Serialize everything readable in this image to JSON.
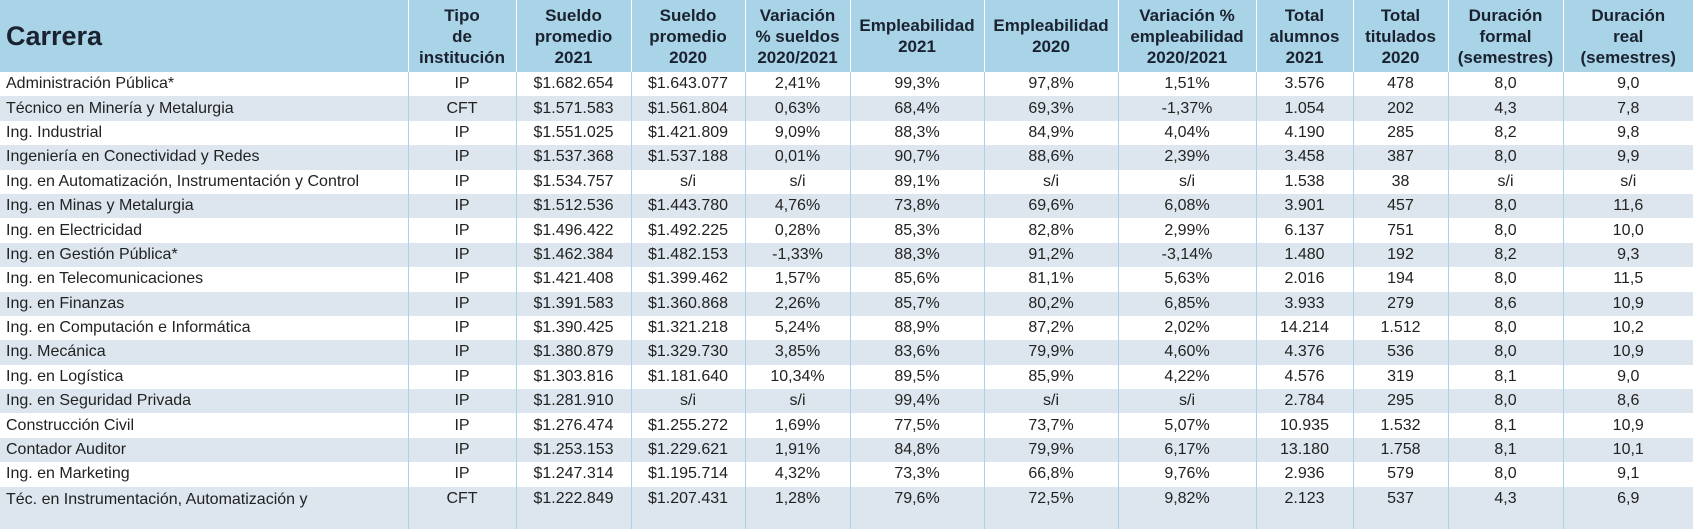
{
  "table": {
    "headers": [
      "Carrera",
      "Tipo\nde\ninstitución",
      "Sueldo\npromedio\n2021",
      "Sueldo\npromedio\n2020",
      "Variación\n% sueldos\n2020/2021",
      "Empleabilidad\n2021",
      "Empleabilidad\n2020",
      "Variación %\nempleabilidad\n2020/2021",
      "Total\nalumnos\n2021",
      "Total\ntitulados\n2020",
      "Duración\nformal\n(semestres)",
      "Duración\nreal\n(semestres)"
    ],
    "rows": [
      [
        "Administración Pública*",
        "IP",
        "$1.682.654",
        "$1.643.077",
        "2,41%",
        "99,3%",
        "97,8%",
        "1,51%",
        "3.576",
        "478",
        "8,0",
        "9,0"
      ],
      [
        "Técnico en Minería y Metalurgia",
        "CFT",
        "$1.571.583",
        "$1.561.804",
        "0,63%",
        "68,4%",
        "69,3%",
        "-1,37%",
        "1.054",
        "202",
        "4,3",
        "7,8"
      ],
      [
        "Ing. Industrial",
        "IP",
        "$1.551.025",
        "$1.421.809",
        "9,09%",
        "88,3%",
        "84,9%",
        "4,04%",
        "4.190",
        "285",
        "8,2",
        "9,8"
      ],
      [
        "Ingeniería en Conectividad y Redes",
        "IP",
        "$1.537.368",
        "$1.537.188",
        "0,01%",
        "90,7%",
        "88,6%",
        "2,39%",
        "3.458",
        "387",
        "8,0",
        "9,9"
      ],
      [
        "Ing. en Automatización, Instrumentación y Control",
        "IP",
        "$1.534.757",
        "s/i",
        "s/i",
        "89,1%",
        "s/i",
        "s/i",
        "1.538",
        "38",
        "s/i",
        "s/i"
      ],
      [
        "Ing. en Minas y Metalurgia",
        "IP",
        "$1.512.536",
        "$1.443.780",
        "4,76%",
        "73,8%",
        "69,6%",
        "6,08%",
        "3.901",
        "457",
        "8,0",
        "11,6"
      ],
      [
        "Ing. en Electricidad",
        "IP",
        "$1.496.422",
        "$1.492.225",
        "0,28%",
        "85,3%",
        "82,8%",
        "2,99%",
        "6.137",
        "751",
        "8,0",
        "10,0"
      ],
      [
        "Ing. en Gestión Pública*",
        "IP",
        "$1.462.384",
        "$1.482.153",
        "-1,33%",
        "88,3%",
        "91,2%",
        "-3,14%",
        "1.480",
        "192",
        "8,2",
        "9,3"
      ],
      [
        "Ing. en Telecomunicaciones",
        "IP",
        "$1.421.408",
        "$1.399.462",
        "1,57%",
        "85,6%",
        "81,1%",
        "5,63%",
        "2.016",
        "194",
        "8,0",
        "11,5"
      ],
      [
        "Ing. en Finanzas",
        "IP",
        "$1.391.583",
        "$1.360.868",
        "2,26%",
        "85,7%",
        "80,2%",
        "6,85%",
        "3.933",
        "279",
        "8,6",
        "10,9"
      ],
      [
        "Ing. en Computación e Informática",
        "IP",
        "$1.390.425",
        "$1.321.218",
        "5,24%",
        "88,9%",
        "87,2%",
        "2,02%",
        "14.214",
        "1.512",
        "8,0",
        "10,2"
      ],
      [
        "Ing. Mecánica",
        "IP",
        "$1.380.879",
        "$1.329.730",
        "3,85%",
        "83,6%",
        "79,9%",
        "4,60%",
        "4.376",
        "536",
        "8,0",
        "10,9"
      ],
      [
        "Ing. en Logística",
        "IP",
        "$1.303.816",
        "$1.181.640",
        "10,34%",
        "89,5%",
        "85,9%",
        "4,22%",
        "4.576",
        "319",
        "8,1",
        "9,0"
      ],
      [
        "Ing. en Seguridad Privada",
        "IP",
        "$1.281.910",
        "s/i",
        "s/i",
        "99,4%",
        "s/i",
        "s/i",
        "2.784",
        "295",
        "8,0",
        "8,6"
      ],
      [
        "Construcción Civil",
        "IP",
        "$1.276.474",
        "$1.255.272",
        "1,69%",
        "77,5%",
        "73,7%",
        "5,07%",
        "10.935",
        "1.532",
        "8,1",
        "10,9"
      ],
      [
        "Contador Auditor",
        "IP",
        "$1.253.153",
        "$1.229.621",
        "1,91%",
        "84,8%",
        "79,9%",
        "6,17%",
        "13.180",
        "1.758",
        "8,1",
        "10,1"
      ],
      [
        "Ing. en Marketing",
        "IP",
        "$1.247.314",
        "$1.195.714",
        "4,32%",
        "73,3%",
        "66,8%",
        "9,76%",
        "2.936",
        "579",
        "8,0",
        "9,1"
      ],
      [
        "Téc. en Instrumentación, Automatización y",
        "CFT",
        "$1.222.849",
        "$1.207.431",
        "1,28%",
        "79,6%",
        "72,5%",
        "9,82%",
        "2.123",
        "537",
        "4,3",
        "6,9"
      ]
    ]
  }
}
